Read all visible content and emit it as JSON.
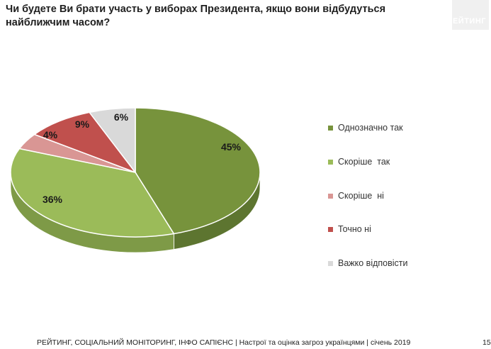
{
  "header": {
    "title": "Чи будете Ви брати участь у виборах Президента, якщо вони відбудуться найближчим часом?",
    "brand": "РЕЙТИНГ"
  },
  "chart_data": {
    "type": "pie",
    "categories": [
      "Однозначно так",
      "Скоріше  так",
      "Скоріше  ні",
      "Точно ні",
      "Важко відповісти"
    ],
    "values": [
      45,
      36,
      4,
      9,
      6
    ],
    "value_labels": [
      "45%",
      "36%",
      "4%",
      "9%",
      "6%"
    ],
    "colors": [
      "#77933c",
      "#9bbb59",
      "#d99694",
      "#c0504d",
      "#d9d9d9"
    ],
    "side_colors": [
      "#5d7530",
      "#7e9a47",
      "#b87a78",
      "#9c3f3c",
      "#b3b3b3"
    ],
    "legend_position": "right",
    "style": "3d"
  },
  "footer": {
    "text": "РЕЙТИНГ, СОЦІАЛЬНИЙ МОНІТОРИНГ, ІНФО САПІЄНС | Настрої та оцінка загроз українцями | січень 2019",
    "page": "15"
  }
}
